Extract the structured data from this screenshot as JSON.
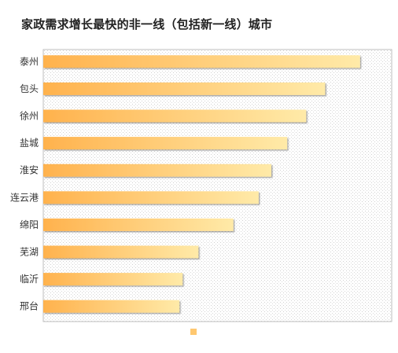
{
  "chart_data": {
    "type": "bar",
    "orientation": "horizontal",
    "title": "家政需求增长最快的非一线（包括新一线）城市",
    "categories": [
      "泰州",
      "包头",
      "徐州",
      "盐城",
      "淮安",
      "连云港",
      "绵阳",
      "芜湖",
      "临沂",
      "邢台"
    ],
    "values": [
      100,
      89,
      83,
      77,
      72,
      68,
      60,
      49,
      44,
      43
    ],
    "xlim": [
      0,
      110
    ],
    "grid": false,
    "legend": "bottom-center",
    "series": [
      {
        "values": [
          100,
          89,
          83,
          77,
          72,
          68,
          60,
          49,
          44,
          43
        ]
      }
    ],
    "colors": {
      "bar_start": "#ffb24d",
      "bar_end": "#ffeaa8",
      "plot_bg_dot": "#cfcfcf",
      "legend_swatch": "#ffc870"
    }
  }
}
